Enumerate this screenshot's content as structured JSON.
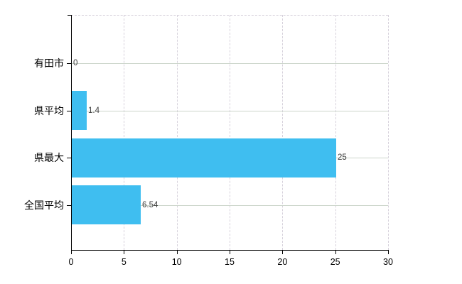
{
  "chart_data": {
    "type": "bar",
    "orientation": "horizontal",
    "title": "",
    "xlabel": "",
    "ylabel": "",
    "categories": [
      "有田市",
      "県平均",
      "県最大",
      "全国平均"
    ],
    "values": [
      0,
      1.4,
      25,
      6.54
    ],
    "value_labels": [
      "0",
      "1.4",
      "25",
      "6.54"
    ],
    "xlim": [
      0,
      30
    ],
    "x_ticks": [
      "0",
      "5",
      "10",
      "15",
      "20",
      "25",
      "30"
    ],
    "grid": {
      "horizontal": "solid",
      "vertical": "dashed",
      "top_border": "dashed"
    },
    "legend_position": "none",
    "colors": {
      "bar": "#3fbef0",
      "axis": "#000000",
      "category_label": "#000000",
      "x_tick_label": "#000000",
      "value_label": "#3d3d3d",
      "h_gridline": "#ccd5cb",
      "v_gridline": "#d6d1db",
      "background": "#ffffff"
    }
  }
}
